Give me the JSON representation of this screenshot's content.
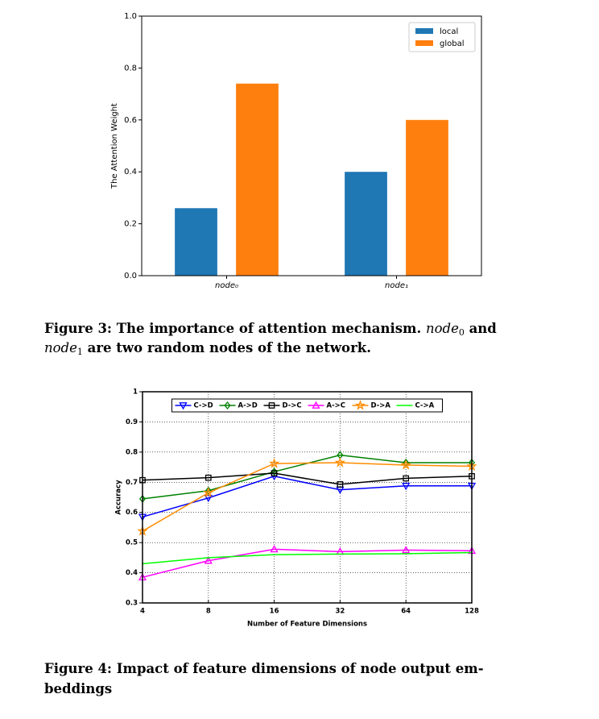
{
  "chart_data": [
    {
      "type": "bar",
      "ylabel": "The Attention Weight",
      "categories": [
        "node₀",
        "node₁"
      ],
      "series": [
        {
          "name": "local",
          "color": "#1f77b4",
          "values": [
            0.26,
            0.4
          ]
        },
        {
          "name": "global",
          "color": "#ff7f0e",
          "values": [
            0.74,
            0.6
          ]
        }
      ],
      "ylim": [
        0,
        1
      ],
      "yticks": [
        {
          "value": 0,
          "label": "0.0"
        },
        {
          "value": 0.2,
          "label": "0.2"
        },
        {
          "value": 0.4,
          "label": "0.4"
        },
        {
          "value": 0.6,
          "label": "0.6"
        },
        {
          "value": 0.8,
          "label": "0.8"
        },
        {
          "value": 1,
          "label": "1.0"
        }
      ],
      "grid": false,
      "legend": "upper right"
    },
    {
      "type": "line",
      "xlabel": "Number of Feature Dimensions",
      "ylabel": "Accuracy",
      "categories": [
        "4",
        "8",
        "16",
        "32",
        "64",
        "128"
      ],
      "series": [
        {
          "name": "C->D",
          "color": "#0000ff",
          "marker": "v",
          "values": [
            0.585,
            0.648,
            0.72,
            0.675,
            0.688,
            0.688
          ]
        },
        {
          "name": "A->D",
          "color": "#008000",
          "marker": "D",
          "values": [
            0.645,
            0.672,
            0.735,
            0.79,
            0.765,
            0.765
          ]
        },
        {
          "name": "D->C",
          "color": "#000000",
          "marker": "s",
          "values": [
            0.707,
            0.715,
            0.73,
            0.693,
            0.713,
            0.72
          ]
        },
        {
          "name": "A->C",
          "color": "#ff00ff",
          "marker": "^",
          "values": [
            0.385,
            0.44,
            0.478,
            0.47,
            0.475,
            0.473
          ]
        },
        {
          "name": "D->A",
          "color": "#ff8c00",
          "marker": "*",
          "values": [
            0.538,
            0.665,
            0.762,
            0.765,
            0.757,
            0.753
          ]
        },
        {
          "name": "C->A",
          "color": "#00ff00",
          "values": [
            0.43,
            0.45,
            0.46,
            0.462,
            0.463,
            0.467
          ]
        }
      ],
      "ylim": [
        0.3,
        1
      ],
      "yticks": [
        0.3,
        0.4,
        0.5,
        0.6,
        0.7,
        0.8,
        0.9,
        1
      ],
      "grid": true,
      "legend": "upper center"
    }
  ],
  "figure3_caption": {
    "line1": [
      "Figure 3: The importance of attention mechanism. ",
      "node",
      "0",
      " and"
    ],
    "line2": [
      "node",
      "1",
      " are two random nodes of the network."
    ]
  },
  "figure4_caption": {
    "line1": "Figure 4: Impact of feature dimensions of node output em-",
    "line2": "beddings"
  }
}
